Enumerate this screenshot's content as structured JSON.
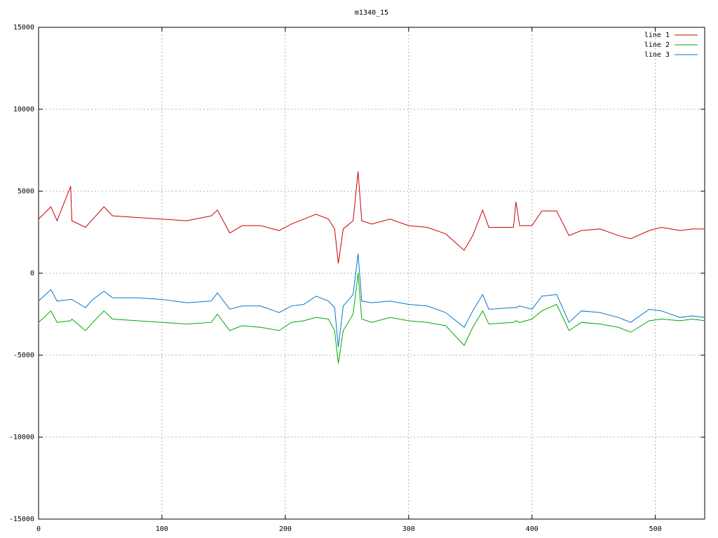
{
  "chart_data": {
    "type": "line",
    "title": "m1340_15",
    "x": [
      0,
      10,
      15,
      26,
      27,
      38,
      44,
      53,
      60,
      80,
      100,
      120,
      140,
      145,
      155,
      165,
      180,
      195,
      205,
      215,
      225,
      235,
      240,
      243,
      247,
      255,
      259,
      262,
      270,
      285,
      300,
      315,
      330,
      345,
      352,
      360,
      365,
      385,
      387,
      390,
      400,
      408,
      420,
      430,
      440,
      455,
      470,
      480,
      495,
      505,
      520,
      530,
      540
    ],
    "series": [
      {
        "name": "line 1",
        "color": "#cc0000",
        "values": [
          3300,
          4050,
          3200,
          5300,
          3200,
          2800,
          3300,
          4050,
          3500,
          3400,
          3300,
          3200,
          3500,
          3850,
          2450,
          2900,
          2900,
          2600,
          3000,
          3300,
          3600,
          3300,
          2700,
          600,
          2700,
          3200,
          6200,
          3200,
          3000,
          3300,
          2900,
          2800,
          2400,
          1400,
          2300,
          3850,
          2800,
          2800,
          4350,
          2900,
          2900,
          3800,
          3800,
          2300,
          2600,
          2700,
          2300,
          2100,
          2600,
          2800,
          2600,
          2700,
          2700
        ]
      },
      {
        "name": "line 2",
        "color": "#00aa00",
        "values": [
          -3000,
          -2300,
          -3000,
          -2900,
          -2800,
          -3500,
          -3000,
          -2300,
          -2800,
          -2900,
          -3000,
          -3100,
          -3000,
          -2500,
          -3500,
          -3200,
          -3300,
          -3500,
          -3000,
          -2900,
          -2700,
          -2800,
          -3500,
          -5500,
          -3500,
          -2500,
          0,
          -2800,
          -3000,
          -2700,
          -2900,
          -3000,
          -3200,
          -4400,
          -3300,
          -2300,
          -3100,
          -3000,
          -2900,
          -3000,
          -2800,
          -2300,
          -1900,
          -3500,
          -3000,
          -3100,
          -3300,
          -3600,
          -2900,
          -2800,
          -2900,
          -2800,
          -2900
        ]
      },
      {
        "name": "line 3",
        "color": "#0077cc",
        "values": [
          -1700,
          -1000,
          -1700,
          -1600,
          -1600,
          -2100,
          -1600,
          -1100,
          -1500,
          -1500,
          -1600,
          -1800,
          -1700,
          -1200,
          -2200,
          -2000,
          -2000,
          -2400,
          -2000,
          -1900,
          -1400,
          -1700,
          -2100,
          -4500,
          -2000,
          -1300,
          1200,
          -1700,
          -1800,
          -1700,
          -1900,
          -2000,
          -2400,
          -3300,
          -2300,
          -1300,
          -2200,
          -2100,
          -2100,
          -2000,
          -2200,
          -1400,
          -1300,
          -3000,
          -2300,
          -2400,
          -2700,
          -3000,
          -2200,
          -2300,
          -2700,
          -2600,
          -2700
        ]
      }
    ],
    "xlim": [
      0,
      540
    ],
    "xticks": [
      0,
      100,
      200,
      300,
      400,
      500
    ],
    "ylim": [
      -15000,
      15000
    ],
    "yticks": [
      -15000,
      -10000,
      -5000,
      0,
      5000,
      10000,
      15000
    ],
    "grid": true,
    "legend": "top-right"
  }
}
